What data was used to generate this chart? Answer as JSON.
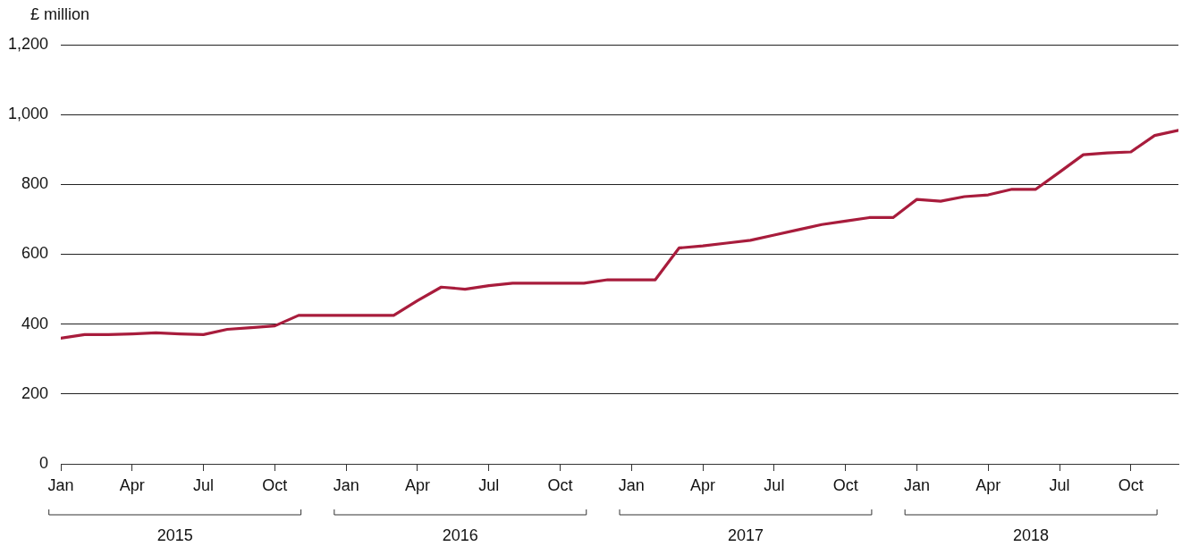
{
  "chart_data": {
    "type": "line",
    "ylabel": "£ million",
    "x": [
      "2015-01",
      "2015-02",
      "2015-03",
      "2015-04",
      "2015-05",
      "2015-06",
      "2015-07",
      "2015-08",
      "2015-09",
      "2015-10",
      "2015-11",
      "2015-12",
      "2016-01",
      "2016-02",
      "2016-03",
      "2016-04",
      "2016-05",
      "2016-06",
      "2016-07",
      "2016-08",
      "2016-09",
      "2016-10",
      "2016-11",
      "2016-12",
      "2017-01",
      "2017-02",
      "2017-03",
      "2017-04",
      "2017-05",
      "2017-06",
      "2017-07",
      "2017-08",
      "2017-09",
      "2017-10",
      "2017-11",
      "2017-12",
      "2018-01",
      "2018-02",
      "2018-03",
      "2018-04",
      "2018-05",
      "2018-06",
      "2018-07",
      "2018-08",
      "2018-09",
      "2018-10",
      "2018-11",
      "2018-12"
    ],
    "series": [
      {
        "color": "#a81c3c",
        "values": [
          360,
          370,
          370,
          372,
          375,
          372,
          370,
          385,
          390,
          395,
          425,
          425,
          425,
          425,
          425,
          467,
          506,
          500,
          510,
          517,
          517,
          517,
          517,
          527,
          527,
          527,
          618,
          624,
          632,
          640,
          655,
          670,
          685,
          695,
          705,
          705,
          757,
          752,
          765,
          770,
          786,
          786,
          835,
          885,
          890,
          893,
          940,
          955
        ]
      }
    ],
    "xlim": [
      "2015-01",
      "2018-12"
    ],
    "xticks": [
      {
        "value": "2015-01",
        "label": "Jan"
      },
      {
        "value": "2015-04",
        "label": "Apr"
      },
      {
        "value": "2015-07",
        "label": "Jul"
      },
      {
        "value": "2015-10",
        "label": "Oct"
      },
      {
        "value": "2016-01",
        "label": "Jan"
      },
      {
        "value": "2016-04",
        "label": "Apr"
      },
      {
        "value": "2016-07",
        "label": "Jul"
      },
      {
        "value": "2016-10",
        "label": "Oct"
      },
      {
        "value": "2017-01",
        "label": "Jan"
      },
      {
        "value": "2017-04",
        "label": "Apr"
      },
      {
        "value": "2017-07",
        "label": "Jul"
      },
      {
        "value": "2017-10",
        "label": "Oct"
      },
      {
        "value": "2018-01",
        "label": "Jan"
      },
      {
        "value": "2018-04",
        "label": "Apr"
      },
      {
        "value": "2018-07",
        "label": "Jul"
      },
      {
        "value": "2018-10",
        "label": "Oct"
      }
    ],
    "ylim": [
      0,
      1200
    ],
    "yticks": [
      0,
      200,
      400,
      600,
      800,
      {
        "value": 1000,
        "label": "1,000"
      },
      {
        "value": 1200,
        "label": "1,200"
      }
    ],
    "annotations": [
      "2015",
      "2016",
      "2017",
      "2018"
    ],
    "grid": "y",
    "legend": false,
    "marker": "none",
    "line_style": "solid"
  }
}
